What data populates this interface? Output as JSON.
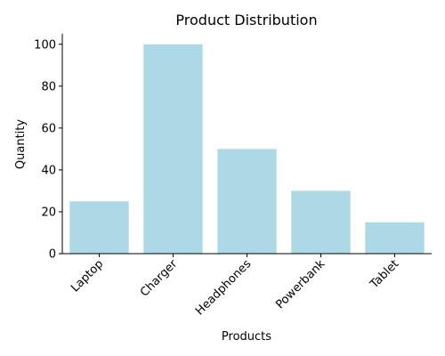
{
  "chart_data": {
    "type": "bar",
    "title": "Product Distribution",
    "xlabel": "Products",
    "ylabel": "Quantity",
    "categories": [
      "Laptop",
      "Charger",
      "Headphones",
      "Powerbank",
      "Tablet"
    ],
    "values": [
      25,
      100,
      50,
      30,
      15
    ],
    "ylim": [
      0,
      105
    ],
    "yticks": [
      "0",
      "20",
      "40",
      "60",
      "80",
      "100"
    ],
    "bar_color": "#add8e6",
    "grid": false,
    "legend": "none"
  }
}
